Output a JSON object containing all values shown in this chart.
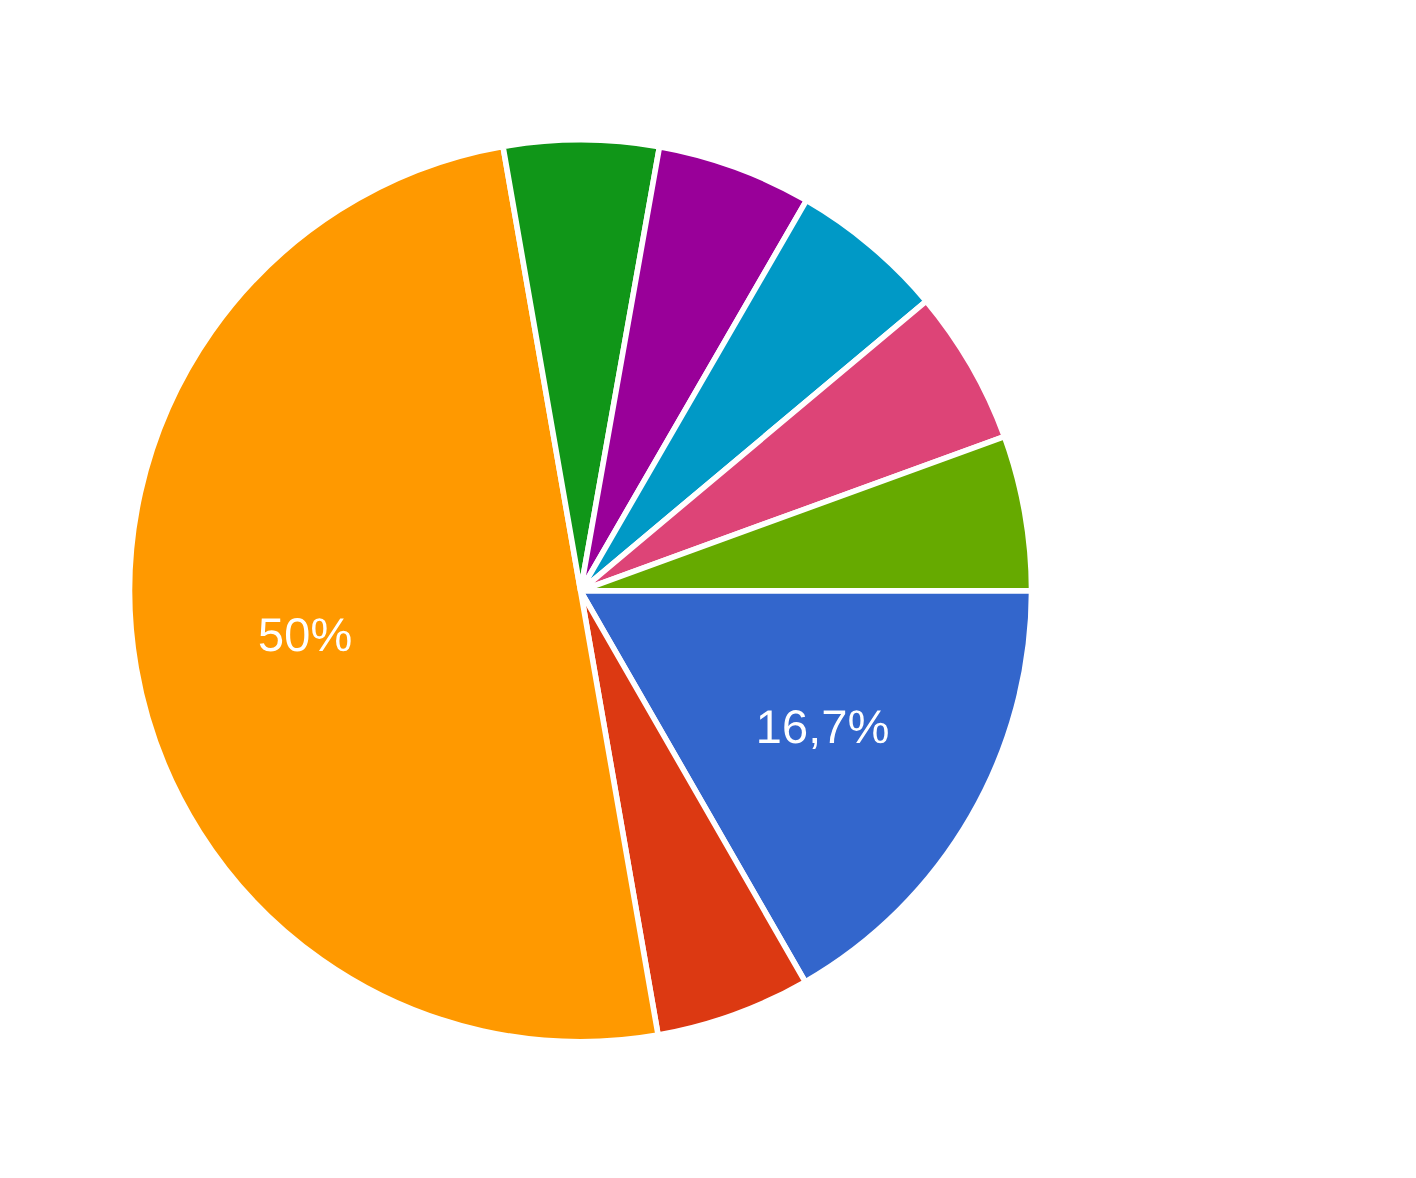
{
  "chart_data": {
    "type": "pie",
    "categories": [
      null,
      null,
      null,
      null,
      null,
      null,
      null,
      null
    ],
    "values": [
      16.7,
      5.55,
      50,
      5.55,
      5.55,
      5.55,
      5.55,
      5.55
    ],
    "colors": [
      "#3366cc",
      "#dc3912",
      "#ff9900",
      "#109618",
      "#990099",
      "#0099c6",
      "#dd4477",
      "#66aa00"
    ],
    "value_labels": [
      "16,7%",
      null,
      "50%",
      null,
      null,
      null,
      null,
      null
    ]
  }
}
